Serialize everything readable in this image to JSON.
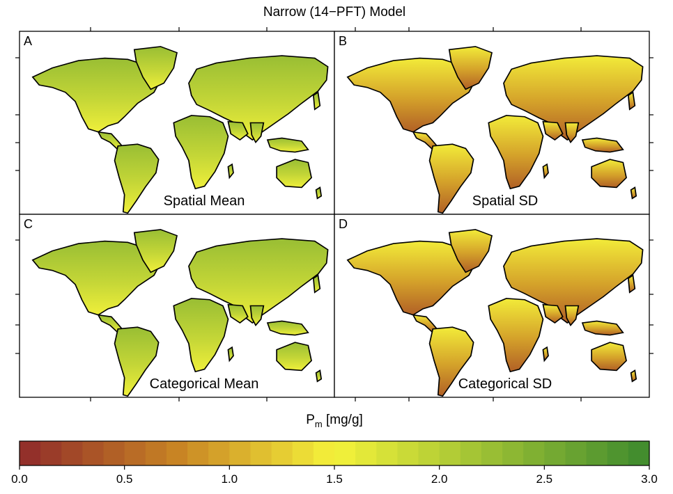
{
  "title": "Narrow (14−PFT) Model",
  "xlabel": {
    "main": "P",
    "sub": "m",
    "unit": " [mg/g]"
  },
  "colors": {
    "low": "#8f2a2a",
    "mid": "#f5f23a",
    "high": "#3d8a2e",
    "ocean": "#ffffff",
    "border": "#000000"
  },
  "chart_data": [
    {
      "type": "heatmap",
      "panel_letter": "A",
      "panel_title": "Spatial Mean"
    },
    {
      "type": "heatmap",
      "panel_letter": "B",
      "panel_title": "Spatial SD"
    },
    {
      "type": "heatmap",
      "panel_letter": "C",
      "panel_title": "Categorical Mean"
    },
    {
      "type": "heatmap",
      "panel_letter": "D",
      "panel_title": "Categorical SD"
    }
  ],
  "colorbar": {
    "min": 0.0,
    "max": 3.0,
    "n_steps": 30,
    "ticks": [
      "0.0",
      "0.5",
      "1.0",
      "1.5",
      "2.0",
      "2.5",
      "3.0"
    ]
  }
}
